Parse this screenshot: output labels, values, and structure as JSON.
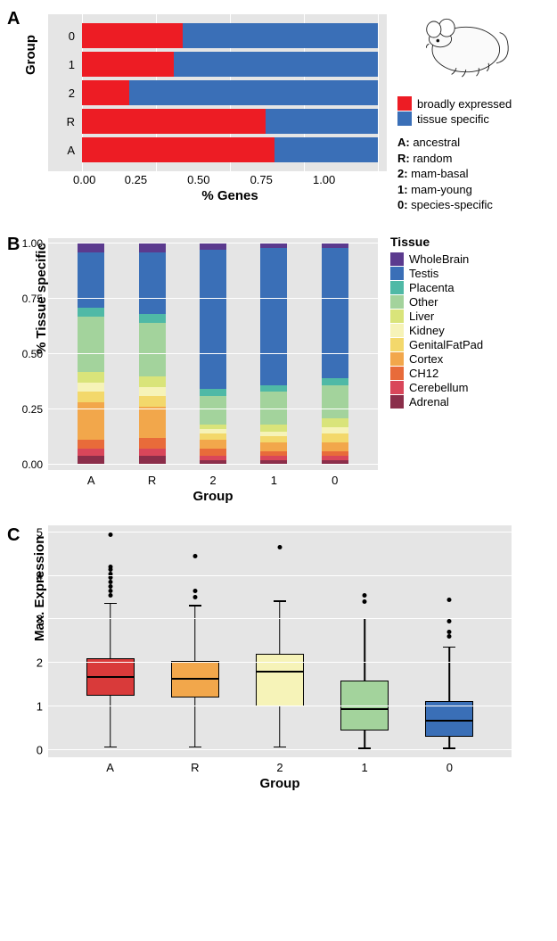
{
  "colors": {
    "panel_bg": "#e5e5e5",
    "grid": "#ffffff"
  },
  "panelA": {
    "label": "A",
    "ylabel": "Group",
    "xlabel": "% Genes",
    "xticks": [
      "0.00",
      "0.25",
      "0.50",
      "0.75",
      "1.00"
    ],
    "legend": [
      {
        "label": "broadly expressed",
        "color": "#ed1c24"
      },
      {
        "label": "tissue specific",
        "color": "#3a6fb7"
      }
    ],
    "group_key": [
      {
        "k": "A:",
        "v": "ancestral"
      },
      {
        "k": "R:",
        "v": "random"
      },
      {
        "k": "2:",
        "v": "mam-basal"
      },
      {
        "k": "1:",
        "v": "mam-young"
      },
      {
        "k": "0:",
        "v": "species-specific"
      }
    ],
    "categories": [
      "0",
      "1",
      "2",
      "R",
      "A"
    ],
    "series_colors": {
      "broad": "#ed1c24",
      "tissue": "#3a6fb7"
    },
    "data": {
      "0": {
        "broad": 0.34,
        "tissue": 0.66
      },
      "1": {
        "broad": 0.31,
        "tissue": 0.69
      },
      "2": {
        "broad": 0.16,
        "tissue": 0.84
      },
      "R": {
        "broad": 0.62,
        "tissue": 0.38
      },
      "A": {
        "broad": 0.65,
        "tissue": 0.35
      }
    }
  },
  "panelB": {
    "label": "B",
    "ylabel": "% Tissue specific",
    "xlabel": "Group",
    "legend_title": "Tissue",
    "yticks": [
      "0.00",
      "0.25",
      "0.50",
      "0.75",
      "1.00"
    ],
    "categories": [
      "A",
      "R",
      "2",
      "1",
      "0"
    ],
    "tissues": [
      {
        "name": "WholeBrain",
        "color": "#5b3a8e"
      },
      {
        "name": "Testis",
        "color": "#3a6fb7"
      },
      {
        "name": "Placenta",
        "color": "#4fb9a6"
      },
      {
        "name": "Other",
        "color": "#a3d39c"
      },
      {
        "name": "Liver",
        "color": "#d9e47a"
      },
      {
        "name": "Kidney",
        "color": "#f6f3b8"
      },
      {
        "name": "GenitalFatPad",
        "color": "#f3d86b"
      },
      {
        "name": "Cortex",
        "color": "#f2a74b"
      },
      {
        "name": "CH12",
        "color": "#e86b3a"
      },
      {
        "name": "Cerebellum",
        "color": "#d9465a"
      },
      {
        "name": "Adrenal",
        "color": "#8b2e4a"
      }
    ],
    "data": {
      "A": {
        "Adrenal": 0.04,
        "Cerebellum": 0.03,
        "CH12": 0.04,
        "Cortex": 0.17,
        "GenitalFatPad": 0.05,
        "Kidney": 0.04,
        "Liver": 0.05,
        "Other": 0.25,
        "Placenta": 0.04,
        "Testis": 0.25,
        "WholeBrain": 0.04
      },
      "R": {
        "Adrenal": 0.04,
        "Cerebellum": 0.03,
        "CH12": 0.05,
        "Cortex": 0.14,
        "GenitalFatPad": 0.05,
        "Kidney": 0.04,
        "Liver": 0.05,
        "Other": 0.24,
        "Placenta": 0.04,
        "Testis": 0.28,
        "WholeBrain": 0.04
      },
      "2": {
        "Adrenal": 0.02,
        "Cerebellum": 0.02,
        "CH12": 0.03,
        "Cortex": 0.04,
        "GenitalFatPad": 0.03,
        "Kidney": 0.02,
        "Liver": 0.02,
        "Other": 0.13,
        "Placenta": 0.03,
        "Testis": 0.63,
        "WholeBrain": 0.03
      },
      "1": {
        "Adrenal": 0.02,
        "Cerebellum": 0.02,
        "CH12": 0.02,
        "Cortex": 0.04,
        "GenitalFatPad": 0.03,
        "Kidney": 0.02,
        "Liver": 0.03,
        "Other": 0.15,
        "Placenta": 0.03,
        "Testis": 0.62,
        "WholeBrain": 0.02
      },
      "0": {
        "Adrenal": 0.02,
        "Cerebellum": 0.02,
        "CH12": 0.02,
        "Cortex": 0.04,
        "GenitalFatPad": 0.04,
        "Kidney": 0.03,
        "Liver": 0.04,
        "Other": 0.15,
        "Placenta": 0.03,
        "Testis": 0.59,
        "WholeBrain": 0.02
      }
    }
  },
  "panelC": {
    "label": "C",
    "ylabel": "Max. Expression",
    "xlabel": "Group",
    "ymax": 5.0,
    "yticks": [
      "0",
      "1",
      "2",
      "3",
      "4",
      "5"
    ],
    "categories": [
      "A",
      "R",
      "2",
      "1",
      "0"
    ],
    "box_colors": {
      "A": "#d93a3a",
      "R": "#f2a74b",
      "2": "#f6f3b8",
      "1": "#a3d39c",
      "0": "#3a6fb7"
    },
    "boxes": {
      "A": {
        "low": 0.05,
        "q1": 1.25,
        "med": 1.65,
        "q3": 2.1,
        "high": 3.35,
        "outliers": [
          3.5,
          3.6,
          3.7,
          3.8,
          3.9,
          4.0,
          4.1,
          4.15,
          4.9
        ]
      },
      "R": {
        "low": 0.05,
        "q1": 1.2,
        "med": 1.62,
        "q3": 2.05,
        "high": 3.3,
        "outliers": [
          3.45,
          3.6,
          4.4
        ]
      },
      "2": {
        "low": 0.05,
        "q1": 1.0,
        "med": 1.78,
        "q3": 2.2,
        "high": 3.4,
        "outliers": [
          4.6
        ]
      },
      "1": {
        "low": 0.02,
        "q1": 0.45,
        "med": 0.92,
        "q3": 1.6,
        "high": 3.0,
        "outliers": [
          3.35,
          3.5
        ]
      },
      "0": {
        "low": 0.02,
        "q1": 0.3,
        "med": 0.65,
        "q3": 1.12,
        "high": 2.35,
        "outliers": [
          2.55,
          2.65,
          2.9,
          3.4
        ]
      }
    }
  }
}
